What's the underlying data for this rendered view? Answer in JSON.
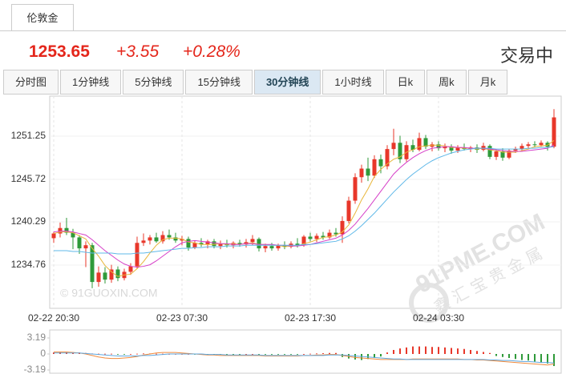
{
  "tab": "伦敦金",
  "quote": {
    "price": "1253.65",
    "change": "+3.55",
    "change_pct": "+0.28%",
    "status": "交易中"
  },
  "periods": [
    "分时图",
    "1分钟线",
    "5分钟线",
    "15分钟线",
    "30分钟线",
    "1小时线",
    "日k",
    "周k",
    "月k"
  ],
  "active_period": 4,
  "watermarks": [
    "© 91GUOXIN.COM",
    "91PME.COM",
    "鑫汇宝贵金属"
  ],
  "chart_data": [
    {
      "type": "candlestick",
      "categories": [
        "02-22 20:30",
        null,
        null,
        null,
        null,
        null,
        null,
        null,
        null,
        null,
        null,
        null,
        null,
        null,
        null,
        null,
        null,
        null,
        null,
        null,
        "02-23 07:30",
        null,
        null,
        null,
        null,
        null,
        null,
        null,
        null,
        null,
        null,
        null,
        null,
        null,
        null,
        null,
        null,
        null,
        null,
        null,
        "02-23 17:30",
        null,
        null,
        null,
        null,
        null,
        null,
        null,
        null,
        null,
        null,
        null,
        null,
        null,
        null,
        null,
        null,
        null,
        null,
        null,
        "02-24 03:30",
        null,
        null,
        null,
        null,
        null,
        null,
        null,
        null,
        null,
        null,
        null,
        null,
        null,
        null,
        null,
        null,
        null,
        null
      ],
      "open": [
        1238.2,
        1238.8,
        1239.5,
        1238.9,
        1238.3,
        1236.9,
        1237.3,
        1232.6,
        1233.8,
        1232.9,
        1234.2,
        1233.1,
        1233.9,
        1234.6,
        1237.6,
        1237.9,
        1238.3,
        1237.8,
        1238.6,
        1238.3,
        1237.9,
        1238.1,
        1237.0,
        1237.6,
        1237.4,
        1237.8,
        1237.2,
        1237.5,
        1237.3,
        1237.6,
        1237.4,
        1237.7,
        1238.1,
        1236.9,
        1237.2,
        1236.9,
        1237.3,
        1237.1,
        1237.5,
        1237.3,
        1238.4,
        1238.1,
        1238.5,
        1238.3,
        1238.9,
        1238.7,
        1240.4,
        1243.0,
        1246.0,
        1247.1,
        1246.2,
        1248.3,
        1247.4,
        1249.6,
        1250.4,
        1248.3,
        1250.1,
        1249.5,
        1251.0,
        1249.9,
        1250.2,
        1249.7,
        1249.9,
        1249.4,
        1249.8,
        1249.6,
        1249.8,
        1249.5,
        1250.0,
        1248.6,
        1249.3,
        1248.5,
        1249.4,
        1249.6,
        1250.0,
        1250.2,
        1250.1,
        1250.4,
        1249.9
      ],
      "high": [
        1239.0,
        1240.2,
        1240.8,
        1239.4,
        1238.6,
        1237.8,
        1237.6,
        1234.6,
        1234.5,
        1234.8,
        1234.6,
        1234.3,
        1235.0,
        1238.4,
        1238.8,
        1238.6,
        1238.9,
        1239.1,
        1239.3,
        1238.9,
        1238.5,
        1238.4,
        1237.9,
        1238.2,
        1238.0,
        1238.1,
        1237.9,
        1238.0,
        1237.8,
        1238.0,
        1238.1,
        1238.6,
        1238.3,
        1237.5,
        1237.6,
        1237.5,
        1237.8,
        1237.8,
        1238.2,
        1238.6,
        1238.9,
        1238.8,
        1239.0,
        1239.3,
        1239.5,
        1241.0,
        1243.5,
        1246.5,
        1247.6,
        1248.5,
        1248.8,
        1248.9,
        1250.1,
        1252.2,
        1251.3,
        1250.6,
        1250.8,
        1251.7,
        1251.4,
        1250.5,
        1250.6,
        1250.3,
        1250.2,
        1250.1,
        1250.3,
        1250.0,
        1250.2,
        1250.4,
        1250.2,
        1249.6,
        1249.7,
        1249.6,
        1249.9,
        1250.3,
        1250.5,
        1250.6,
        1250.7,
        1250.6,
        1254.7
      ],
      "low": [
        1237.6,
        1238.3,
        1238.6,
        1236.8,
        1236.2,
        1234.5,
        1231.8,
        1232.0,
        1232.4,
        1232.5,
        1232.7,
        1232.8,
        1233.5,
        1234.3,
        1237.2,
        1237.4,
        1237.6,
        1237.5,
        1238.0,
        1237.6,
        1237.3,
        1236.6,
        1236.8,
        1237.1,
        1236.9,
        1236.9,
        1236.8,
        1237.0,
        1236.9,
        1237.1,
        1237.0,
        1237.3,
        1236.5,
        1236.4,
        1236.6,
        1236.6,
        1236.8,
        1236.9,
        1237.0,
        1237.1,
        1237.8,
        1237.7,
        1238.0,
        1238.1,
        1238.4,
        1237.6,
        1240.1,
        1242.6,
        1245.3,
        1245.5,
        1245.9,
        1246.5,
        1247.0,
        1248.8,
        1247.8,
        1248.0,
        1249.2,
        1249.3,
        1249.6,
        1249.3,
        1249.4,
        1249.2,
        1249.0,
        1249.1,
        1249.4,
        1249.2,
        1249.1,
        1249.3,
        1248.3,
        1248.2,
        1248.1,
        1248.3,
        1249.1,
        1249.4,
        1249.7,
        1249.8,
        1249.9,
        1249.4,
        1249.7
      ],
      "close": [
        1238.8,
        1239.5,
        1238.9,
        1238.3,
        1236.9,
        1237.3,
        1232.6,
        1233.8,
        1232.9,
        1234.2,
        1233.1,
        1233.9,
        1234.6,
        1237.6,
        1237.9,
        1238.3,
        1237.8,
        1238.6,
        1238.3,
        1237.9,
        1238.1,
        1237.0,
        1237.6,
        1237.4,
        1237.8,
        1237.2,
        1237.5,
        1237.3,
        1237.6,
        1237.4,
        1237.7,
        1238.1,
        1236.9,
        1237.2,
        1236.9,
        1237.3,
        1237.1,
        1237.5,
        1237.3,
        1238.4,
        1238.1,
        1238.5,
        1238.3,
        1238.9,
        1238.7,
        1240.4,
        1243.0,
        1246.0,
        1247.1,
        1246.2,
        1248.3,
        1247.4,
        1249.6,
        1250.4,
        1248.3,
        1250.1,
        1249.5,
        1251.0,
        1249.9,
        1250.2,
        1249.7,
        1249.9,
        1249.4,
        1249.8,
        1249.6,
        1249.8,
        1249.5,
        1250.0,
        1248.6,
        1249.3,
        1248.5,
        1249.4,
        1249.6,
        1250.0,
        1250.2,
        1250.1,
        1250.4,
        1249.9,
        1253.65
      ],
      "up_color": "#e8372a",
      "down_color": "#2f9a3a",
      "overlays": [
        {
          "color": "#e8b63a",
          "values": [
            1238.8,
            1239.0,
            1239.0,
            1238.9,
            1238.5,
            1238.1,
            1236.9,
            1235.9,
            1234.7,
            1233.9,
            1233.3,
            1233.5,
            1233.6,
            1234.3,
            1235.2,
            1236.3,
            1237.3,
            1238.0,
            1238.2,
            1238.2,
            1238.1,
            1237.7,
            1237.6,
            1237.4,
            1237.4,
            1237.4,
            1237.5,
            1237.4,
            1237.5,
            1237.4,
            1237.5,
            1237.6,
            1237.4,
            1237.4,
            1237.3,
            1237.3,
            1237.1,
            1237.2,
            1237.2,
            1237.5,
            1237.7,
            1238.0,
            1238.3,
            1238.4,
            1238.6,
            1239.0,
            1239.9,
            1241.4,
            1243.1,
            1244.5,
            1246.1,
            1247.0,
            1247.7,
            1248.3,
            1248.6,
            1249.2,
            1249.5,
            1249.9,
            1250.0,
            1250.1,
            1250.1,
            1250.0,
            1249.8,
            1249.8,
            1249.7,
            1249.7,
            1249.6,
            1249.7,
            1249.5,
            1249.4,
            1249.2,
            1249.2,
            1249.2,
            1249.4,
            1249.6,
            1249.9,
            1250.0,
            1250.1,
            1250.7
          ]
        },
        {
          "color": "#d63fc8",
          "values": [
            1239.0,
            1239.1,
            1239.1,
            1239.0,
            1238.8,
            1238.6,
            1238.0,
            1237.3,
            1236.6,
            1236.0,
            1235.4,
            1234.9,
            1234.6,
            1234.5,
            1234.6,
            1234.8,
            1235.3,
            1235.9,
            1236.5,
            1237.1,
            1237.6,
            1237.8,
            1237.9,
            1237.8,
            1237.7,
            1237.6,
            1237.5,
            1237.5,
            1237.4,
            1237.4,
            1237.5,
            1237.5,
            1237.4,
            1237.4,
            1237.4,
            1237.3,
            1237.3,
            1237.2,
            1237.2,
            1237.3,
            1237.4,
            1237.6,
            1237.8,
            1238.0,
            1238.2,
            1238.6,
            1239.2,
            1240.0,
            1241.0,
            1242.0,
            1243.1,
            1244.2,
            1245.3,
            1246.4,
            1247.2,
            1247.9,
            1248.5,
            1249.0,
            1249.4,
            1249.7,
            1249.8,
            1249.9,
            1249.9,
            1249.8,
            1249.8,
            1249.7,
            1249.7,
            1249.7,
            1249.6,
            1249.5,
            1249.4,
            1249.3,
            1249.3,
            1249.3,
            1249.4,
            1249.5,
            1249.6,
            1249.7,
            1250.1
          ]
        },
        {
          "color": "#5fb8e8",
          "values": [
            1236.6,
            1236.6,
            1236.6,
            1236.5,
            1236.5,
            1236.4,
            1236.3,
            1236.3,
            1236.3,
            1236.3,
            1236.2,
            1236.2,
            1236.2,
            1236.3,
            1236.3,
            1236.4,
            1236.5,
            1236.6,
            1236.7,
            1236.8,
            1236.9,
            1236.9,
            1237.0,
            1237.0,
            1237.1,
            1237.1,
            1237.1,
            1237.2,
            1237.2,
            1237.2,
            1237.3,
            1237.3,
            1237.3,
            1237.3,
            1237.3,
            1237.3,
            1237.3,
            1237.3,
            1237.3,
            1237.4,
            1237.4,
            1237.5,
            1237.6,
            1237.7,
            1237.8,
            1238.1,
            1238.5,
            1239.1,
            1239.8,
            1240.6,
            1241.4,
            1242.3,
            1243.2,
            1244.1,
            1244.9,
            1245.7,
            1246.4,
            1247.0,
            1247.6,
            1248.1,
            1248.5,
            1248.8,
            1249.1,
            1249.3,
            1249.5,
            1249.6,
            1249.7,
            1249.7,
            1249.7,
            1249.6,
            1249.6,
            1249.6,
            1249.6,
            1249.6,
            1249.7,
            1249.7,
            1249.8,
            1249.8,
            1249.9
          ]
        }
      ],
      "ylim": [
        1229.23,
        1256.37
      ],
      "yticks": [
        1251.25,
        1245.72,
        1240.29,
        1234.76
      ],
      "grid": true
    },
    {
      "type": "macd",
      "values": [
        0.3,
        0.35,
        0.4,
        0.35,
        0.3,
        0.2,
        0.1,
        0.05,
        0.05,
        0.05,
        -0.05,
        -0.05,
        0,
        0.05,
        0.1,
        0.1,
        0.05,
        0.05,
        0,
        0,
        0,
        0,
        -0.05,
        -0.05,
        -0.1,
        -0.1,
        -0.1,
        -0.05,
        -0.05,
        -0.05,
        0,
        0,
        -0.05,
        -0.05,
        -0.1,
        -0.1,
        -0.05,
        -0.05,
        -0.05,
        0,
        0.05,
        0.1,
        0.15,
        0.2,
        0.2,
        -0.6,
        -0.9,
        -1.1,
        -1.2,
        -1.0,
        -0.8,
        -0.5,
        0.3,
        0.8,
        1.1,
        1.3,
        1.5,
        1.5,
        1.5,
        1.4,
        1.4,
        1.3,
        1.2,
        1.1,
        1.0,
        0.8,
        0.6,
        0.4,
        0.2,
        -0.4,
        -0.6,
        -0.8,
        -1.0,
        -1.2,
        -1.3,
        -1.5,
        -1.7,
        -1.9,
        -2.4
      ],
      "up_color": "#e8372a",
      "down_color": "#2f9a3a",
      "lines": [
        {
          "color": "#f08a3c",
          "values": [
            0.4,
            0.4,
            0.4,
            0.3,
            0.2,
            0,
            -0.3,
            -0.6,
            -0.8,
            -0.9,
            -0.9,
            -0.8,
            -0.7,
            -0.5,
            -0.2,
            0,
            0.2,
            0.3,
            0.3,
            0.3,
            0.2,
            0.1,
            0,
            -0.1,
            -0.2,
            -0.2,
            -0.3,
            -0.3,
            -0.3,
            -0.3,
            -0.3,
            -0.3,
            -0.3,
            -0.4,
            -0.4,
            -0.4,
            -0.4,
            -0.4,
            -0.4,
            -0.3,
            -0.3,
            -0.2,
            -0.2,
            -0.1,
            -0.1,
            -0.3,
            -0.5,
            -0.7,
            -0.8,
            -0.9,
            -1.0,
            -1.1,
            -1.1,
            -1.1,
            -1.1,
            -1.1,
            -1.0,
            -1.0,
            -1.0,
            -1.0,
            -1.0,
            -1.0,
            -1.0,
            -1.0,
            -1.1,
            -1.1,
            -1.2,
            -1.2,
            -1.3,
            -1.4,
            -1.5,
            -1.6,
            -1.7,
            -1.8,
            -1.9,
            -2.0,
            -2.1,
            -2.2,
            -2.0
          ]
        },
        {
          "color": "#5fa8e0",
          "values": [
            0.2,
            0.2,
            0.2,
            0.2,
            0.2,
            0.1,
            0,
            -0.1,
            -0.2,
            -0.3,
            -0.4,
            -0.4,
            -0.4,
            -0.4,
            -0.3,
            -0.3,
            -0.2,
            -0.1,
            0,
            0,
            0,
            0,
            0,
            0,
            -0.1,
            -0.1,
            -0.1,
            -0.2,
            -0.2,
            -0.2,
            -0.2,
            -0.2,
            -0.2,
            -0.3,
            -0.3,
            -0.3,
            -0.3,
            -0.3,
            -0.3,
            -0.3,
            -0.3,
            -0.3,
            -0.3,
            -0.2,
            -0.2,
            -0.2,
            -0.3,
            -0.4,
            -0.5,
            -0.6,
            -0.7,
            -0.8,
            -0.9,
            -1.0,
            -1.0,
            -1.1,
            -1.1,
            -1.1,
            -1.1,
            -1.1,
            -1.1,
            -1.1,
            -1.1,
            -1.1,
            -1.1,
            -1.1,
            -1.1,
            -1.1,
            -1.2,
            -1.2,
            -1.3,
            -1.3,
            -1.4,
            -1.5,
            -1.5,
            -1.6,
            -1.7,
            -1.7,
            -1.8
          ]
        }
      ],
      "ylim": [
        -3.19,
        3.19
      ],
      "yticks": [
        3.19,
        0,
        -3.19
      ]
    }
  ]
}
